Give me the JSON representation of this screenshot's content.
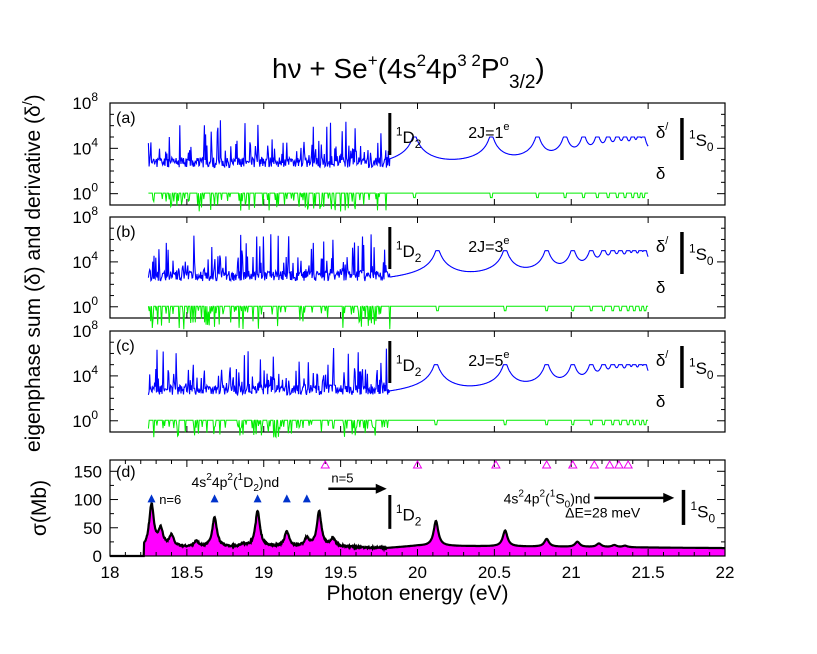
{
  "figure": {
    "title_main": "hν + Se",
    "title_sup": "+",
    "title_rest": "(4s",
    "title_sup2": "2",
    "title_mid": "4p",
    "title_sup3": "3 2",
    "title_P": "P",
    "title_o": "o",
    "title_sub": "3/2",
    "title_close": ")",
    "ylabel_top": "eigenphase sum (δ)  and derivative (δ",
    "ylabel_prime": "/",
    "ylabel_close": ")"
  },
  "chart_data": [
    {
      "type": "line",
      "panel": "(a)",
      "title": "",
      "xlim": [
        18,
        22
      ],
      "ylim_log10": [
        -1,
        8
      ],
      "ytick_labels": [
        "10",
        "10",
        "10"
      ],
      "ytick_exponents": [
        "0",
        "4",
        "8"
      ],
      "series": [
        {
          "name": "δ/",
          "color": "#0000ff",
          "description": "derivative of eigenphase sum",
          "x_range": [
            18.25,
            21.5
          ]
        },
        {
          "name": "δ",
          "color": "#00ee00",
          "description": "eigenphase sum",
          "x_range": [
            18.25,
            21.5
          ]
        }
      ],
      "resonance_peaks_above_threshold": [
        19.98,
        20.48,
        20.78,
        20.96,
        21.08,
        21.17,
        21.24,
        21.3,
        21.35,
        21.4,
        21.44,
        21.47
      ],
      "threshold_1D2_eV": 19.82,
      "annotations": {
        "threshold": "1D2",
        "symmetry": "2J=1",
        "symmetry_sup": "e",
        "series_deriv": "δ/",
        "series_sum": "δ",
        "limit": "1S0"
      }
    },
    {
      "type": "line",
      "panel": "(b)",
      "xlim": [
        18,
        22
      ],
      "ylim_log10": [
        -1,
        8
      ],
      "ytick_labels": [
        "10",
        "10",
        "10"
      ],
      "ytick_exponents": [
        "0",
        "4",
        "8"
      ],
      "series": [
        {
          "name": "δ/",
          "color": "#0000ff",
          "x_range": [
            18.25,
            21.5
          ]
        },
        {
          "name": "δ",
          "color": "#00ee00",
          "x_range": [
            18.25,
            21.5
          ]
        }
      ],
      "resonance_peaks_above_threshold": [
        20.13,
        20.57,
        20.84,
        21.01,
        21.13,
        21.21,
        21.27,
        21.32,
        21.37,
        21.41,
        21.45,
        21.48
      ],
      "threshold_1D2_eV": 19.82,
      "annotations": {
        "threshold": "1D2",
        "symmetry": "2J=3",
        "symmetry_sup": "e",
        "series_deriv": "δ/",
        "series_sum": "δ",
        "limit": "1S0"
      }
    },
    {
      "type": "line",
      "panel": "(c)",
      "xlim": [
        18,
        22
      ],
      "ylim_log10": [
        -1,
        8
      ],
      "ytick_labels": [
        "10",
        "10",
        "10"
      ],
      "ytick_exponents": [
        "0",
        "4",
        "8"
      ],
      "series": [
        {
          "name": "δ/",
          "color": "#0000ff",
          "x_range": [
            18.25,
            21.5
          ]
        },
        {
          "name": "δ",
          "color": "#00ee00",
          "x_range": [
            18.25,
            21.5
          ]
        }
      ],
      "resonance_peaks_above_threshold": [
        20.12,
        20.57,
        20.84,
        21.01,
        21.13,
        21.21,
        21.27,
        21.32,
        21.37,
        21.41,
        21.45,
        21.48
      ],
      "threshold_1D2_eV": 19.82,
      "annotations": {
        "threshold": "1D2",
        "symmetry": "2J=5",
        "symmetry_sup": "e",
        "series_deriv": "δ/",
        "series_sum": "δ",
        "limit": "1S0"
      }
    },
    {
      "type": "area",
      "panel": "(d)",
      "xlabel": "Photon energy (eV)",
      "ylabel": "σ(Mb)",
      "xlim": [
        18,
        22
      ],
      "ylim": [
        0,
        170
      ],
      "xticks": [
        18,
        18.5,
        19,
        19.5,
        20,
        20.5,
        21,
        21.5,
        22
      ],
      "xtick_labels": [
        "18",
        "18.5",
        "19",
        "19.5",
        "20",
        "20.5",
        "21",
        "21.5",
        "22"
      ],
      "yticks": [
        0,
        50,
        100,
        150
      ],
      "ytick_labels": [
        "0",
        "50",
        "100",
        "150"
      ],
      "fill_color": "#ff00ff",
      "line_color": "#000000",
      "onset_eV": 18.22,
      "peaks": [
        {
          "x": 18.27,
          "y": 90
        },
        {
          "x": 18.33,
          "y": 45
        },
        {
          "x": 18.4,
          "y": 35
        },
        {
          "x": 18.56,
          "y": 25
        },
        {
          "x": 18.68,
          "y": 68
        },
        {
          "x": 18.86,
          "y": 20
        },
        {
          "x": 18.96,
          "y": 79
        },
        {
          "x": 19.15,
          "y": 42
        },
        {
          "x": 19.28,
          "y": 30
        },
        {
          "x": 19.36,
          "y": 78
        },
        {
          "x": 19.45,
          "y": 30
        },
        {
          "x": 20.12,
          "y": 62
        },
        {
          "x": 20.57,
          "y": 45
        },
        {
          "x": 20.84,
          "y": 30
        },
        {
          "x": 21.04,
          "y": 25
        },
        {
          "x": 21.18,
          "y": 22
        },
        {
          "x": 21.28,
          "y": 19
        },
        {
          "x": 21.35,
          "y": 18
        }
      ],
      "background_level": [
        {
          "x": 18.25,
          "y": 15
        },
        {
          "x": 19.5,
          "y": 16
        },
        {
          "x": 19.8,
          "y": 14
        },
        {
          "x": 20.0,
          "y": 18
        },
        {
          "x": 22.0,
          "y": 14
        }
      ],
      "markers_n6": {
        "symbol": "filled-triangle",
        "color": "#0033cc",
        "x": [
          18.27,
          18.68,
          18.96,
          19.15,
          19.28
        ],
        "y": 102
      },
      "markers_n5": {
        "symbol": "open-triangle",
        "color": "#ee00ee",
        "x": [
          19.4,
          20.0,
          20.51,
          20.84,
          21.01,
          21.15,
          21.25,
          21.31,
          21.37
        ],
        "y": 162
      },
      "threshold_1D2_eV": 19.82,
      "limit_1S0_eV": 21.73,
      "annotations": {
        "panel_label": "(d)",
        "n6_label": "n=6",
        "n5_label": "n=5",
        "series_1D2": "4s",
        "series_1D2_rest": "4p",
        "series_1D2_term": "D",
        "series_1D2_end": ")nd",
        "series_1S0": "4s",
        "series_1S0_rest": "4p",
        "series_1S0_term": "S",
        "series_1S0_end": ")nd",
        "threshold": "1D2",
        "limit": "1S0",
        "resolution": "ΔE=28 meV"
      }
    }
  ]
}
